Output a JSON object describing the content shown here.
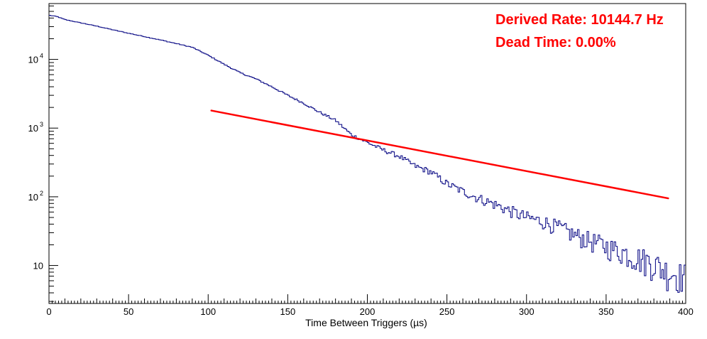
{
  "chart_data": {
    "type": "line",
    "title": "",
    "xlabel": "Time Between Triggers (µs)",
    "ylabel": "",
    "xlim": [
      0,
      400
    ],
    "ylim": [
      2.8,
      65000
    ],
    "yscale": "log",
    "grid": false,
    "x_ticks": [
      "0",
      "50",
      "100",
      "150",
      "200",
      "250",
      "300",
      "350",
      "400"
    ],
    "y_ticks": [
      {
        "value": 10,
        "base": "10",
        "exp": ""
      },
      {
        "value": 100,
        "base": "10",
        "exp": "2"
      },
      {
        "value": 1000,
        "base": "10",
        "exp": "3"
      },
      {
        "value": 10000,
        "base": "10",
        "exp": "4"
      }
    ],
    "annotations": {
      "rate": "Derived Rate: 10144.7 Hz",
      "dead_time": "Dead Time: 0.00%"
    },
    "colors": {
      "histogram": "#000080",
      "fit": "#ff0000",
      "annotation": "#ff0000",
      "axis": "#000000"
    },
    "series": [
      {
        "kind": "histogram",
        "bin_width": 1,
        "x": [
          0,
          5,
          10,
          20,
          30,
          40,
          50,
          60,
          70,
          80,
          90,
          100,
          110,
          120,
          130,
          140,
          150,
          160,
          170,
          180,
          190,
          200,
          210,
          220,
          230,
          240,
          250,
          260,
          270,
          280,
          290,
          300,
          310,
          320,
          330,
          340,
          350,
          360,
          370,
          380,
          385,
          390,
          395,
          400
        ],
        "values": [
          44000,
          42000,
          38000,
          34000,
          30500,
          27000,
          24000,
          21500,
          19200,
          17000,
          15000,
          11500,
          8500,
          6400,
          5200,
          4000,
          3000,
          2300,
          1700,
          1300,
          800,
          620,
          480,
          390,
          280,
          230,
          155,
          120,
          95,
          78,
          62,
          50,
          44,
          36,
          28,
          23,
          19,
          16,
          13,
          11,
          9,
          8,
          7.5,
          7
        ]
      },
      {
        "kind": "fit",
        "x": [
          102,
          389
        ],
        "values": [
          1800,
          95
        ]
      }
    ]
  }
}
